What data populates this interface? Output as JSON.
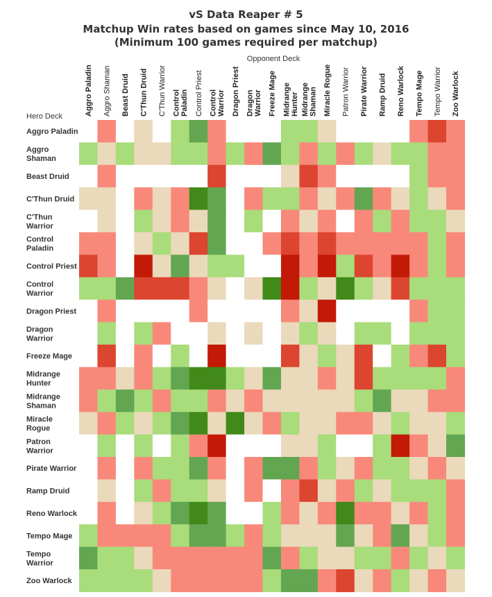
{
  "chart_data": {
    "type": "heatmap",
    "title": "vS Data Reaper # 5",
    "subtitle_line1": "Matchup Win rates based on games since May 10, 2016",
    "subtitle_line2": "(Minimum 100 games required per matchup)",
    "xlabel": "Opponent Deck",
    "ylabel": "Hero Deck",
    "columns": [
      {
        "lines": [
          "Aggro Paladin"
        ],
        "bold": true
      },
      {
        "lines": [
          "Aggro Shaman"
        ],
        "bold": false
      },
      {
        "lines": [
          "Beast Druid"
        ],
        "bold": true
      },
      {
        "lines": [
          "C'Thun Druid"
        ],
        "bold": true
      },
      {
        "lines": [
          "C'Thun Warrior"
        ],
        "bold": false
      },
      {
        "lines": [
          "Control",
          "Paladin"
        ],
        "bold": true
      },
      {
        "lines": [
          "Control Priest"
        ],
        "bold": false
      },
      {
        "lines": [
          "Control",
          "Warrior"
        ],
        "bold": true
      },
      {
        "lines": [
          "Dragon Priest"
        ],
        "bold": true
      },
      {
        "lines": [
          "Dragon",
          "Warrior"
        ],
        "bold": true
      },
      {
        "lines": [
          "Freeze Mage"
        ],
        "bold": true
      },
      {
        "lines": [
          "Midrange",
          "Hunter"
        ],
        "bold": true
      },
      {
        "lines": [
          "Midrange",
          "Shaman"
        ],
        "bold": true
      },
      {
        "lines": [
          "Miracle Rogue"
        ],
        "bold": true
      },
      {
        "lines": [
          "Patron Warrior"
        ],
        "bold": false
      },
      {
        "lines": [
          "Pirate Warrior"
        ],
        "bold": true
      },
      {
        "lines": [
          "Ramp Druid"
        ],
        "bold": true
      },
      {
        "lines": [
          "Reno Warlock"
        ],
        "bold": true
      },
      {
        "lines": [
          "Tempo Mage"
        ],
        "bold": true
      },
      {
        "lines": [
          "Tempo Warrior"
        ],
        "bold": false
      },
      {
        "lines": [
          "Zoo Warlock"
        ],
        "bold": true
      }
    ],
    "rows": [
      [
        "Aggro Paladin"
      ],
      [
        "Aggro",
        "Shaman"
      ],
      [
        "Beast Druid"
      ],
      [
        "C'Thun Druid"
      ],
      [
        "C'Thun",
        "Warrior"
      ],
      [
        "Control",
        "Paladin"
      ],
      [
        "Control Priest"
      ],
      [
        "Control",
        "Warrior"
      ],
      [
        "Dragon Priest"
      ],
      [
        "Dragon",
        "Warrior"
      ],
      [
        "Freeze Mage"
      ],
      [
        "Midrange",
        "Hunter"
      ],
      [
        "Midrange",
        "Shaman"
      ],
      [
        "Miracle",
        "Rogue"
      ],
      [
        "Patron",
        "Warrior"
      ],
      [
        "Pirate Warrior"
      ],
      [
        "Ramp Druid"
      ],
      [
        "Reno Warlock"
      ],
      [
        "Tempo Mage"
      ],
      [
        "Tempo",
        "Warrior"
      ],
      [
        "Zoo Warlock"
      ]
    ],
    "levels_note": "0 = no data, 1 = strong loss (dark red) ... 4 = even (beige) ... 7 = strong win (dark green)",
    "cells": [
      [
        0,
        3,
        0,
        4,
        0,
        5,
        6,
        3,
        0,
        0,
        0,
        5,
        5,
        4,
        0,
        0,
        0,
        0,
        3,
        2,
        3
      ],
      [
        5,
        4,
        5,
        4,
        4,
        5,
        5,
        3,
        5,
        3,
        6,
        5,
        3,
        5,
        3,
        5,
        4,
        5,
        5,
        3,
        3
      ],
      [
        0,
        3,
        0,
        0,
        0,
        0,
        0,
        2,
        0,
        0,
        0,
        4,
        2,
        3,
        0,
        0,
        0,
        0,
        5,
        3,
        3
      ],
      [
        4,
        4,
        0,
        3,
        4,
        3,
        7,
        6,
        0,
        3,
        5,
        5,
        3,
        4,
        3,
        6,
        3,
        4,
        5,
        4,
        3
      ],
      [
        0,
        4,
        0,
        5,
        4,
        3,
        4,
        6,
        0,
        5,
        0,
        3,
        4,
        3,
        0,
        3,
        5,
        3,
        5,
        5,
        4
      ],
      [
        3,
        3,
        0,
        4,
        5,
        4,
        2,
        6,
        0,
        0,
        3,
        2,
        3,
        2,
        3,
        3,
        3,
        3,
        3,
        5,
        3
      ],
      [
        2,
        3,
        0,
        1,
        4,
        6,
        4,
        5,
        5,
        0,
        0,
        1,
        3,
        1,
        5,
        2,
        3,
        1,
        3,
        5,
        3
      ],
      [
        5,
        5,
        6,
        2,
        2,
        2,
        3,
        4,
        0,
        4,
        7,
        1,
        5,
        4,
        7,
        5,
        4,
        2,
        5,
        5,
        5
      ],
      [
        0,
        3,
        0,
        0,
        0,
        0,
        3,
        0,
        0,
        0,
        0,
        3,
        4,
        1,
        0,
        0,
        0,
        0,
        3,
        5,
        5
      ],
      [
        0,
        5,
        0,
        5,
        3,
        0,
        0,
        4,
        0,
        4,
        0,
        4,
        5,
        4,
        0,
        5,
        5,
        0,
        5,
        5,
        5
      ],
      [
        0,
        2,
        0,
        3,
        0,
        5,
        0,
        1,
        0,
        0,
        0,
        2,
        4,
        5,
        4,
        2,
        0,
        5,
        3,
        2,
        5
      ],
      [
        3,
        3,
        4,
        3,
        5,
        6,
        7,
        7,
        5,
        4,
        6,
        4,
        4,
        3,
        4,
        2,
        5,
        5,
        5,
        5,
        3
      ],
      [
        3,
        5,
        6,
        5,
        3,
        5,
        5,
        3,
        4,
        3,
        4,
        4,
        4,
        4,
        4,
        5,
        6,
        4,
        4,
        3,
        3
      ],
      [
        4,
        3,
        5,
        4,
        5,
        6,
        7,
        4,
        7,
        4,
        3,
        5,
        4,
        4,
        3,
        3,
        4,
        5,
        4,
        4,
        5
      ],
      [
        0,
        5,
        0,
        5,
        0,
        5,
        3,
        1,
        0,
        0,
        0,
        4,
        4,
        5,
        0,
        0,
        5,
        1,
        3,
        4,
        6
      ],
      [
        0,
        3,
        0,
        3,
        5,
        5,
        6,
        3,
        0,
        3,
        6,
        6,
        3,
        5,
        4,
        3,
        5,
        5,
        4,
        3,
        4
      ],
      [
        0,
        4,
        0,
        5,
        3,
        5,
        5,
        4,
        0,
        3,
        0,
        3,
        2,
        4,
        3,
        5,
        4,
        5,
        5,
        5,
        3
      ],
      [
        0,
        3,
        0,
        4,
        5,
        6,
        7,
        6,
        0,
        0,
        5,
        3,
        4,
        3,
        7,
        3,
        3,
        4,
        3,
        5,
        3
      ],
      [
        5,
        3,
        3,
        3,
        3,
        5,
        6,
        6,
        5,
        3,
        5,
        4,
        4,
        4,
        6,
        4,
        3,
        6,
        4,
        5,
        3
      ],
      [
        6,
        5,
        5,
        4,
        3,
        3,
        3,
        3,
        3,
        3,
        6,
        3,
        5,
        4,
        4,
        5,
        5,
        3,
        5,
        4,
        5
      ],
      [
        5,
        5,
        5,
        5,
        4,
        3,
        3,
        3,
        3,
        3,
        5,
        6,
        6,
        3,
        2,
        4,
        3,
        5,
        4,
        3,
        4
      ]
    ]
  },
  "palette": [
    "#ffffff",
    "#bc1a06",
    "#da412b",
    "#f26550",
    "#ebdcbe",
    "#a8dc7c",
    "#64a854",
    "#418a1a"
  ],
  "cell_colors": {
    "1": "#c42010",
    "2": "#dc4530",
    "3": "#f2705c",
    "4": "#e8d9b8",
    "5": "#a6db78",
    "6": "#63a651",
    "7": "#3d8a18"
  },
  "salmon": "#fc8a7c",
  "light_green": "#a8dc78"
}
